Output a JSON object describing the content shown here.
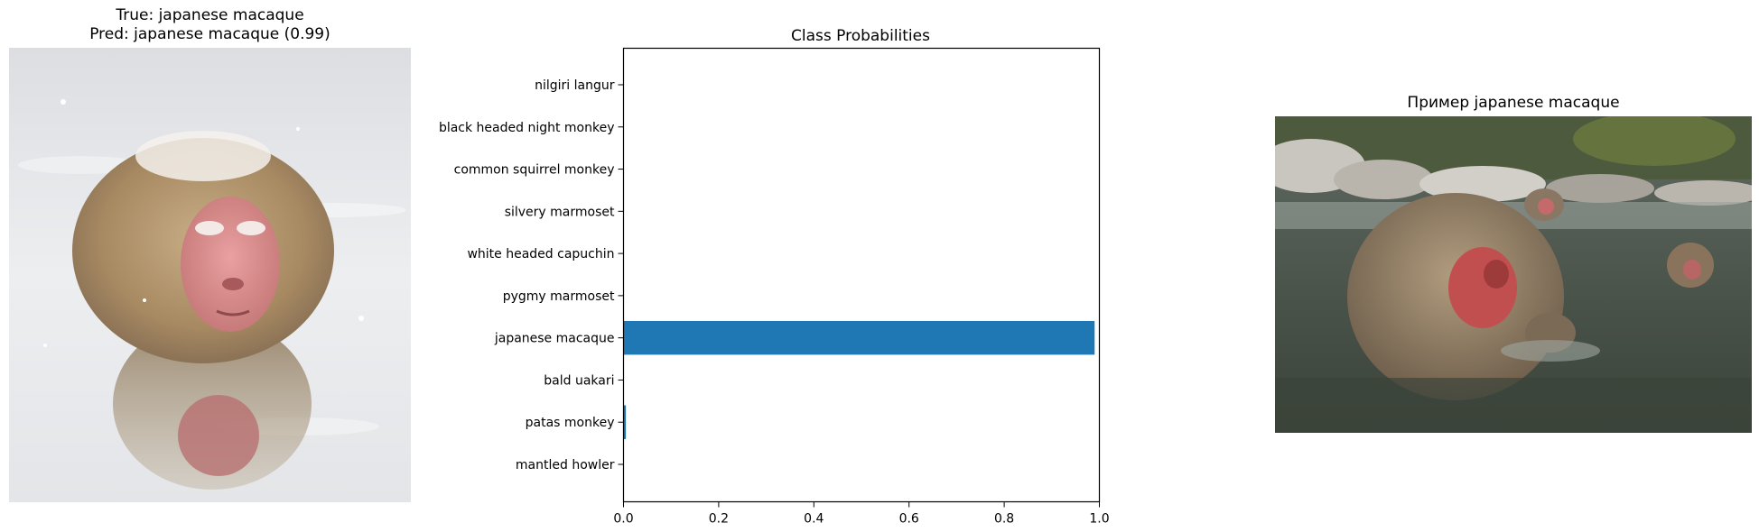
{
  "left_panel": {
    "title_line1": "True: japanese macaque",
    "title_line2": "Pred: japanese macaque (0.99)"
  },
  "right_panel": {
    "title": "Пример japanese macaque"
  },
  "colors": {
    "bar": "#1f77b4",
    "axes": "#000000"
  },
  "chart_data": {
    "type": "bar",
    "orientation": "horizontal",
    "title": "Class Probabilities",
    "xlabel": "",
    "ylabel": "",
    "xlim": [
      0,
      1.0
    ],
    "x_ticks": [
      "0.0",
      "0.2",
      "0.4",
      "0.6",
      "0.8",
      "1.0"
    ],
    "grid": false,
    "categories": [
      "nilgiri langur",
      "black headed night monkey",
      "common squirrel monkey",
      "silvery marmoset",
      "white headed capuchin",
      "pygmy marmoset",
      "japanese macaque",
      "bald uakari",
      "patas monkey",
      "mantled howler"
    ],
    "values": [
      0.0,
      0.0,
      0.0,
      0.0,
      0.0,
      0.0,
      0.99,
      0.0,
      0.005,
      0.0
    ]
  }
}
